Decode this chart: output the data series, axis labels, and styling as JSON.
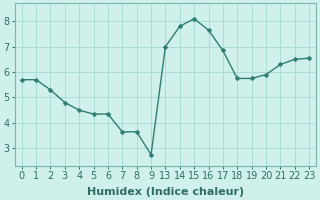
{
  "x_labels": [
    "0",
    "1",
    "2",
    "3",
    "4",
    "5",
    "6",
    "7",
    "8",
    "9",
    "13",
    "14",
    "15",
    "16",
    "17",
    "18",
    "19",
    "20",
    "21",
    "22",
    "23"
  ],
  "y": [
    5.7,
    5.7,
    5.3,
    4.8,
    4.5,
    4.35,
    4.35,
    3.65,
    3.65,
    2.75,
    7.0,
    7.8,
    8.1,
    7.65,
    6.85,
    5.75,
    5.75,
    5.9,
    6.3,
    6.5,
    6.55
  ],
  "line_color": "#2e7d72",
  "marker": "D",
  "markersize": 2.5,
  "linewidth": 1.0,
  "bg_color": "#cff0eb",
  "grid_color": "#aaddd7",
  "xlabel": "Humidex (Indice chaleur)",
  "xlabel_fontsize": 8,
  "yticks": [
    3,
    4,
    5,
    6,
    7,
    8
  ],
  "ylim": [
    2.3,
    8.7
  ],
  "tick_fontsize": 7,
  "tick_color": "#2e6e66",
  "axis_color": "#7ab5ae",
  "spine_color": "#7ab5ae"
}
